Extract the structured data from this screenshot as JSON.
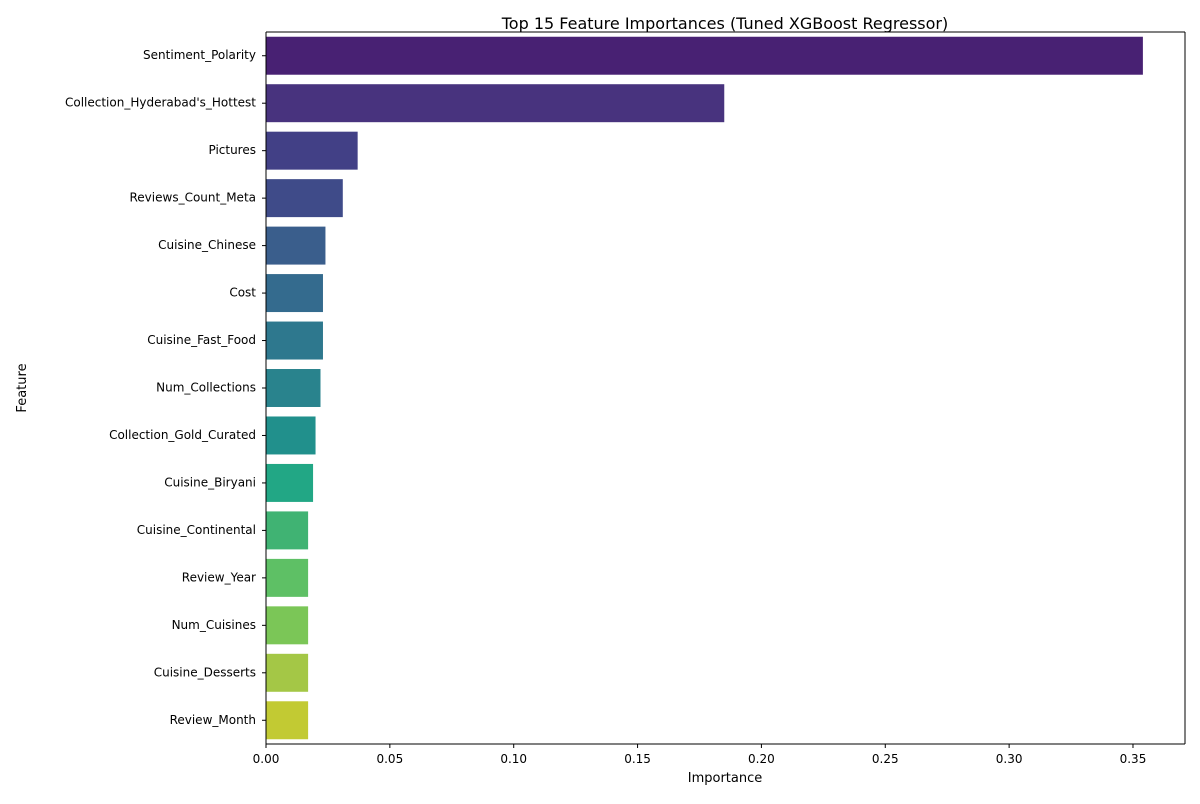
{
  "chart_data": {
    "type": "bar",
    "orientation": "horizontal",
    "title": "Top 15 Feature Importances (Tuned XGBoost Regressor)",
    "xlabel": "Importance",
    "ylabel": "Feature",
    "xlim": [
      0,
      0.371
    ],
    "xticks": [
      0.0,
      0.05,
      0.1,
      0.15,
      0.2,
      0.25,
      0.3,
      0.35
    ],
    "xtick_labels": [
      "0.00",
      "0.05",
      "0.10",
      "0.15",
      "0.20",
      "0.25",
      "0.30",
      "0.35"
    ],
    "grid": false,
    "palette": "viridis",
    "categories": [
      "Sentiment_Polarity",
      "Collection_Hyderabad's_Hottest",
      "Pictures",
      "Reviews_Count_Meta",
      "Cuisine_Chinese",
      "Cost",
      "Cuisine_Fast_Food",
      "Num_Collections",
      "Collection_Gold_Curated",
      "Cuisine_Biryani",
      "Cuisine_Continental",
      "Review_Year",
      "Num_Cuisines",
      "Cuisine_Desserts",
      "Review_Month"
    ],
    "values": [
      0.354,
      0.185,
      0.037,
      0.031,
      0.024,
      0.023,
      0.023,
      0.022,
      0.02,
      0.019,
      0.017,
      0.017,
      0.017,
      0.017,
      0.017
    ],
    "colors": [
      "#482173",
      "#48337e",
      "#424086",
      "#3f4b89",
      "#3a5e8c",
      "#346b8e",
      "#2e788e",
      "#29838d",
      "#21908c",
      "#22a785",
      "#40b373",
      "#5ec065",
      "#7bc657",
      "#a4c746",
      "#c2ca33"
    ]
  }
}
